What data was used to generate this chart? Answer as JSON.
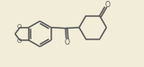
{
  "bg_color": "#f2edd8",
  "line_color": "#555555",
  "lw": 1.1,
  "figsize": [
    1.6,
    0.75
  ],
  "dpi": 100,
  "xlim": [
    0,
    160
  ],
  "ylim": [
    0,
    75
  ]
}
